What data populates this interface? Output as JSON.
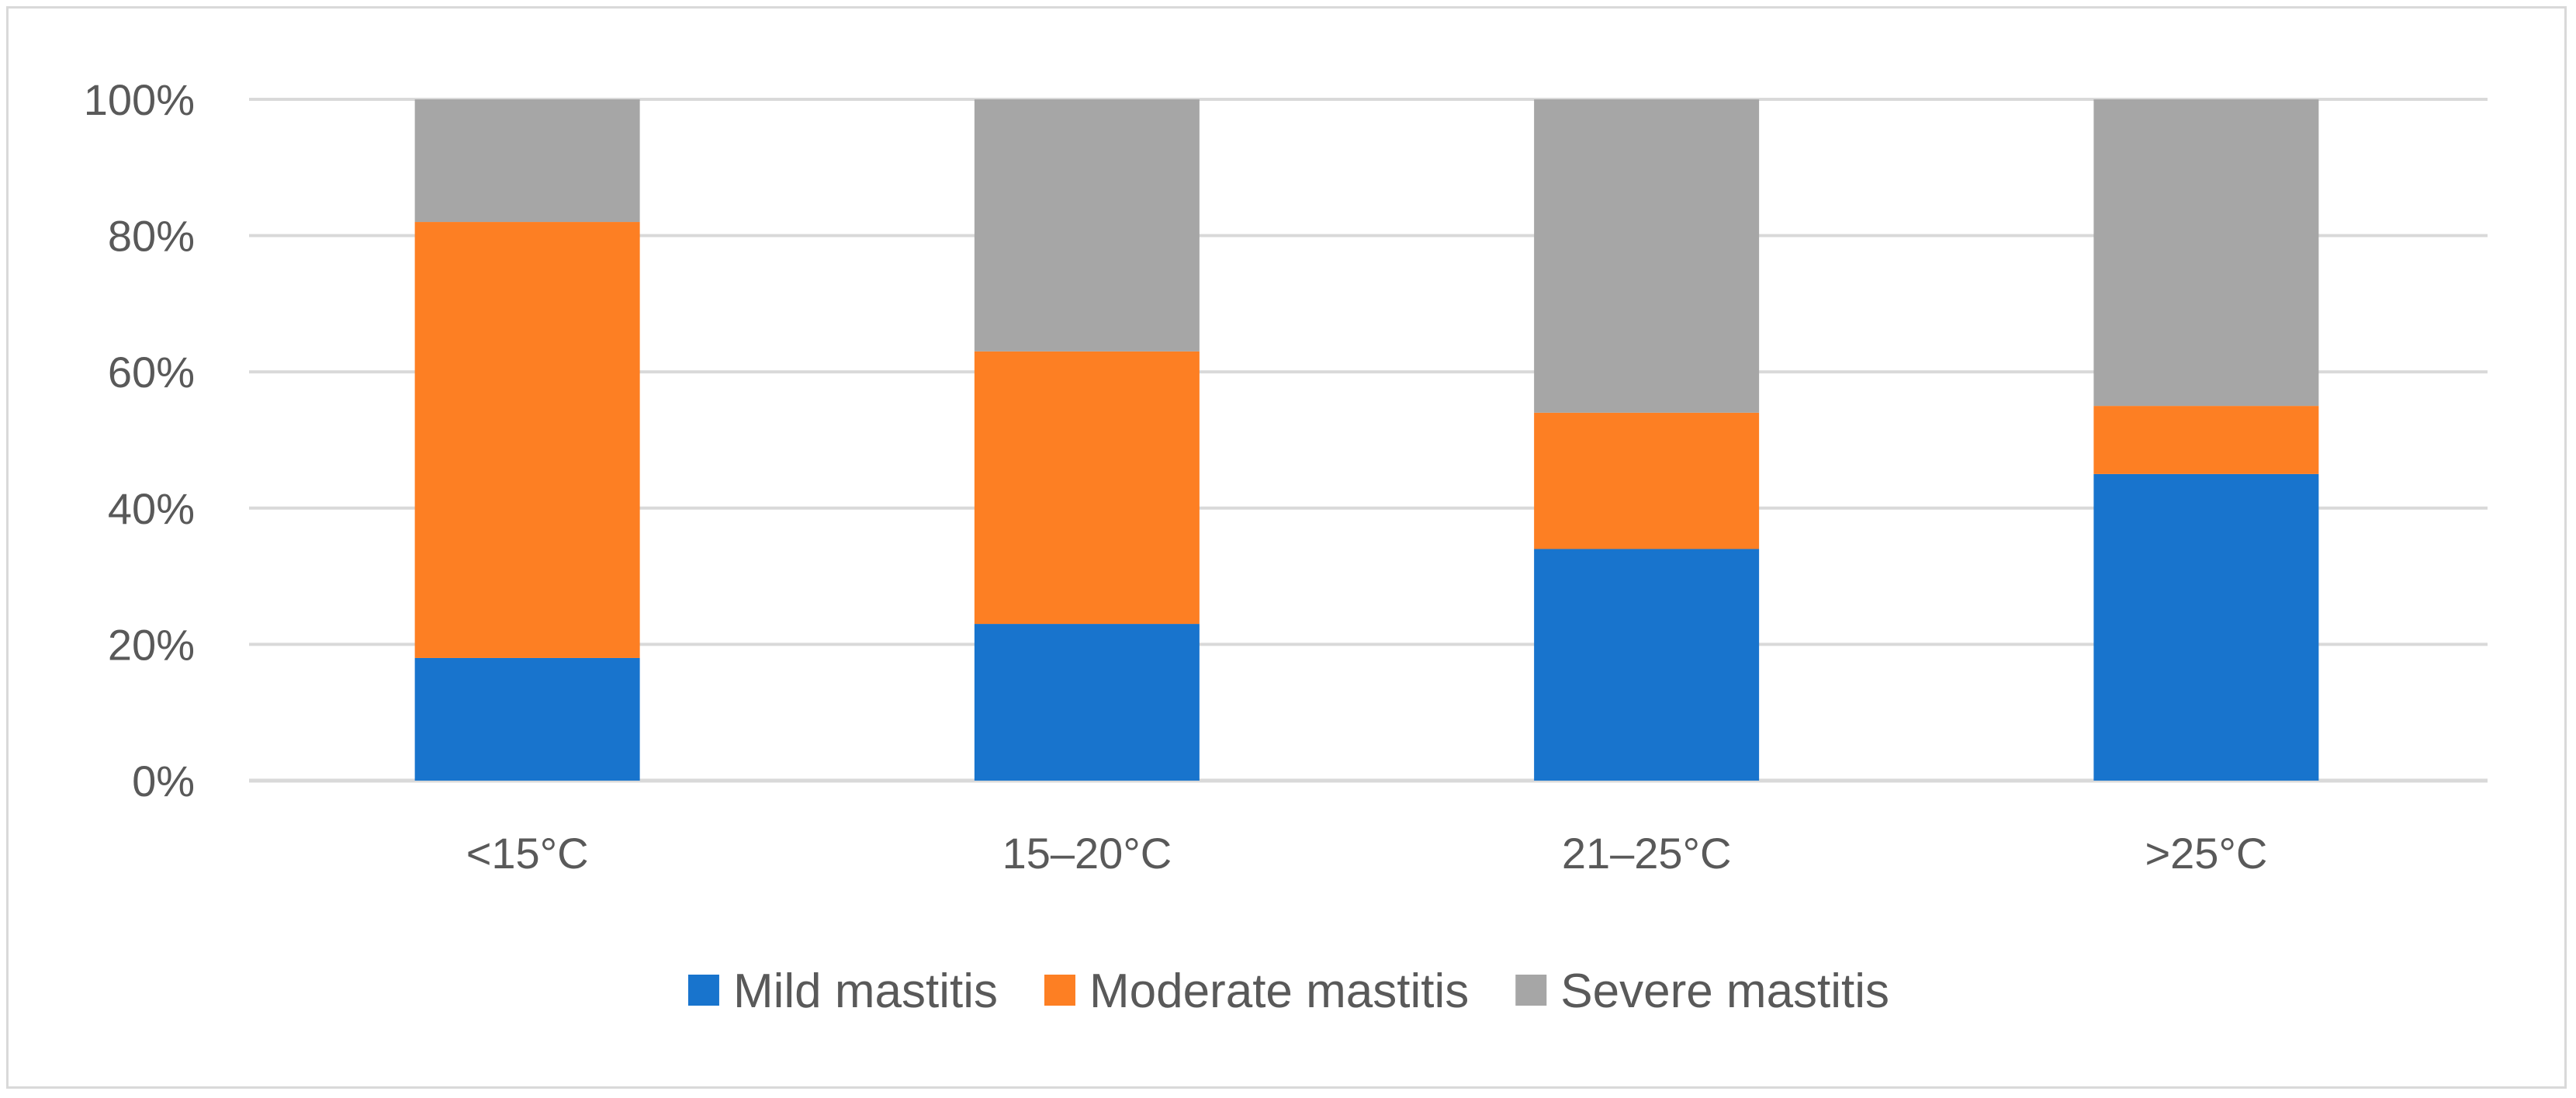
{
  "chart_data": {
    "type": "bar",
    "stacked": true,
    "percent_stacked": true,
    "title": "",
    "xlabel": "",
    "ylabel": "",
    "categories": [
      "<15°C",
      "15–20°C",
      "21–25°C",
      ">25°C"
    ],
    "series": [
      {
        "name": "Mild mastitis",
        "color": "#1874cd",
        "values": [
          18,
          23,
          34,
          45
        ]
      },
      {
        "name": "Moderate mastitis",
        "color": "#fd7f23",
        "values": [
          64,
          40,
          20,
          10
        ]
      },
      {
        "name": "Severe mastitis",
        "color": "#a6a6a6",
        "values": [
          18,
          37,
          46,
          45
        ]
      }
    ],
    "ylim": [
      0,
      100
    ],
    "y_ticks": [
      {
        "value": 0,
        "label": "0%"
      },
      {
        "value": 20,
        "label": "20%"
      },
      {
        "value": 40,
        "label": "40%"
      },
      {
        "value": 60,
        "label": "60%"
      },
      {
        "value": 80,
        "label": "80%"
      },
      {
        "value": 100,
        "label": "100%"
      }
    ],
    "grid": true,
    "legend_position": "bottom-center"
  }
}
